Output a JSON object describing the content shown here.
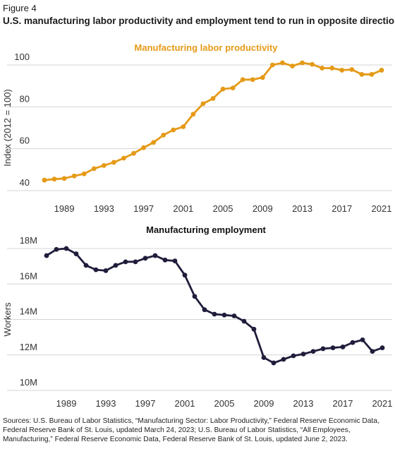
{
  "figure": {
    "label": "Figure 4",
    "title": "U.S. manufacturing labor productivity and employment tend to run in opposite directions"
  },
  "chart_data": [
    {
      "type": "line",
      "title": "Manufacturing labor productivity",
      "ylabel": "Index (2012 = 100)",
      "color": "#e59a17",
      "grid": true,
      "xlim": [
        1987,
        2021
      ],
      "ylim": [
        40,
        100
      ],
      "x_ticks": [
        1989,
        1993,
        1997,
        2001,
        2005,
        2009,
        2013,
        2017,
        2021
      ],
      "y_ticks": [
        {
          "value": 40,
          "label": "40"
        },
        {
          "value": 60,
          "label": "60"
        },
        {
          "value": 80,
          "label": "80"
        },
        {
          "value": 100,
          "label": "100"
        }
      ],
      "x": [
        1987,
        1988,
        1989,
        1990,
        1991,
        1992,
        1993,
        1994,
        1995,
        1996,
        1997,
        1998,
        1999,
        2000,
        2001,
        2002,
        2003,
        2004,
        2005,
        2006,
        2007,
        2008,
        2009,
        2010,
        2011,
        2012,
        2013,
        2014,
        2015,
        2016,
        2017,
        2018,
        2019,
        2020,
        2021
      ],
      "values": [
        45,
        45.5,
        45.8,
        47,
        48,
        50.5,
        52,
        53.5,
        55.5,
        57.8,
        60.5,
        63,
        66.5,
        69,
        70.5,
        76.5,
        81.5,
        84,
        88.5,
        89,
        93,
        93,
        94,
        100,
        101,
        99.5,
        101,
        100.3,
        98.5,
        98.5,
        97.5,
        97.8,
        95.5,
        95.5,
        97.5
      ]
    },
    {
      "type": "line",
      "title": "Manufacturing employment",
      "ylabel": "Workers",
      "color": "#1f1d3b",
      "grid": true,
      "xlim": [
        1987,
        2021
      ],
      "ylim": [
        10,
        18
      ],
      "x_ticks": [
        1989,
        1993,
        1997,
        2001,
        2005,
        2009,
        2013,
        2017,
        2021
      ],
      "y_ticks": [
        {
          "value": 10,
          "label": "10M"
        },
        {
          "value": 12,
          "label": "12M"
        },
        {
          "value": 14,
          "label": "14M"
        },
        {
          "value": 16,
          "label": "16M"
        },
        {
          "value": 18,
          "label": "18M"
        }
      ],
      "x": [
        1987,
        1988,
        1989,
        1990,
        1991,
        1992,
        1993,
        1994,
        1995,
        1996,
        1997,
        1998,
        1999,
        2000,
        2001,
        2002,
        2003,
        2004,
        2005,
        2006,
        2007,
        2008,
        2009,
        2010,
        2011,
        2012,
        2013,
        2014,
        2015,
        2016,
        2017,
        2018,
        2019,
        2020,
        2021
      ],
      "values": [
        17.6,
        17.95,
        18.0,
        17.7,
        17.05,
        16.8,
        16.75,
        17.05,
        17.25,
        17.25,
        17.45,
        17.6,
        17.35,
        17.3,
        16.5,
        15.3,
        14.55,
        14.3,
        14.25,
        14.2,
        13.9,
        13.45,
        11.85,
        11.55,
        11.75,
        11.95,
        12.05,
        12.2,
        12.35,
        12.4,
        12.45,
        12.7,
        12.85,
        12.2,
        12.4
      ]
    }
  ],
  "sources": "Sources: U.S. Bureau of Labor Statistics, “Manufacturing Sector: Labor Productivity,” Federal Reserve Economic Data, Federal Reserve Bank of St. Louis, updated March 24, 2023; U.S. Bureau of Labor Statistics, “All Employees, Manufacturing,” Federal Reserve Economic Data, Federal Reserve Bank of St. Louis, updated June 2, 2023."
}
